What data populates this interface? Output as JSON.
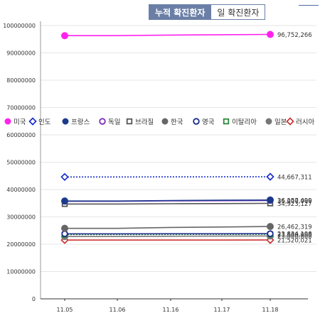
{
  "tabs": {
    "cumulative": "누적 확진환자",
    "daily": "일 확진환자"
  },
  "chart_data": {
    "type": "line",
    "categories": [
      "11.05",
      "11.06",
      "11.16",
      "11.17",
      "11.18"
    ],
    "ylim": [
      0,
      100000000
    ],
    "yticks": [
      0,
      10000000,
      20000000,
      30000000,
      40000000,
      50000000,
      60000000,
      70000000,
      80000000,
      90000000,
      100000000
    ],
    "ytick_labels": [
      "0",
      "10000000",
      "20000000",
      "30000000",
      "40000000",
      "50000000",
      "60000000",
      "70000000",
      "80000000",
      "90000000",
      "100000000"
    ],
    "grid": true,
    "legend_position": "middle",
    "series": [
      {
        "name": "미국",
        "color": "#ff22ee",
        "marker": "circle-filled",
        "style": "solid",
        "start": 96300000,
        "end": 96752266,
        "end_label": "96,752,266"
      },
      {
        "name": "인도",
        "color": "#1a2ecc",
        "marker": "diamond-open",
        "style": "dotted",
        "start": 44600000,
        "end": 44667311,
        "end_label": "44,667,311"
      },
      {
        "name": "프랑스",
        "color": "#1c3a8c",
        "marker": "circle-filled",
        "style": "solid",
        "start": 35800000,
        "end": 36157499,
        "end_label": "36,157,499"
      },
      {
        "name": "독일",
        "color": "#7a2fc0",
        "marker": "circle-open",
        "style": "solid",
        "start": 35700000,
        "end": 36000000,
        "end_label": "36,000,000"
      },
      {
        "name": "브라질",
        "color": "#555555",
        "marker": "square-open",
        "style": "solid",
        "start": 34700000,
        "end": 34923127,
        "end_label": "34,923,127"
      },
      {
        "name": "한국",
        "color": "#666666",
        "marker": "circle-filled",
        "style": "solid",
        "start": 25800000,
        "end": 26462319,
        "end_label": "26,462,319"
      },
      {
        "name": "영국",
        "color": "#1a2a8c",
        "marker": "circle-open",
        "style": "solid",
        "start": 23800000,
        "end": 23834198,
        "end_label": "23,834,198"
      },
      {
        "name": "이탈리아",
        "color": "#2a8a3a",
        "marker": "square-open",
        "style": "dotted",
        "start": 23500000,
        "end": 23600000,
        "end_label": "23,600,000"
      },
      {
        "name": "일본",
        "color": "#777777",
        "marker": "circle-filled",
        "style": "solid",
        "start": 22800000,
        "end": 23000000,
        "end_label": "23,000,000"
      },
      {
        "name": "러시아",
        "color": "#cc3333",
        "marker": "diamond-open",
        "style": "solid",
        "start": 21500000,
        "end": 21520021,
        "end_label": "21,520,021"
      }
    ]
  }
}
